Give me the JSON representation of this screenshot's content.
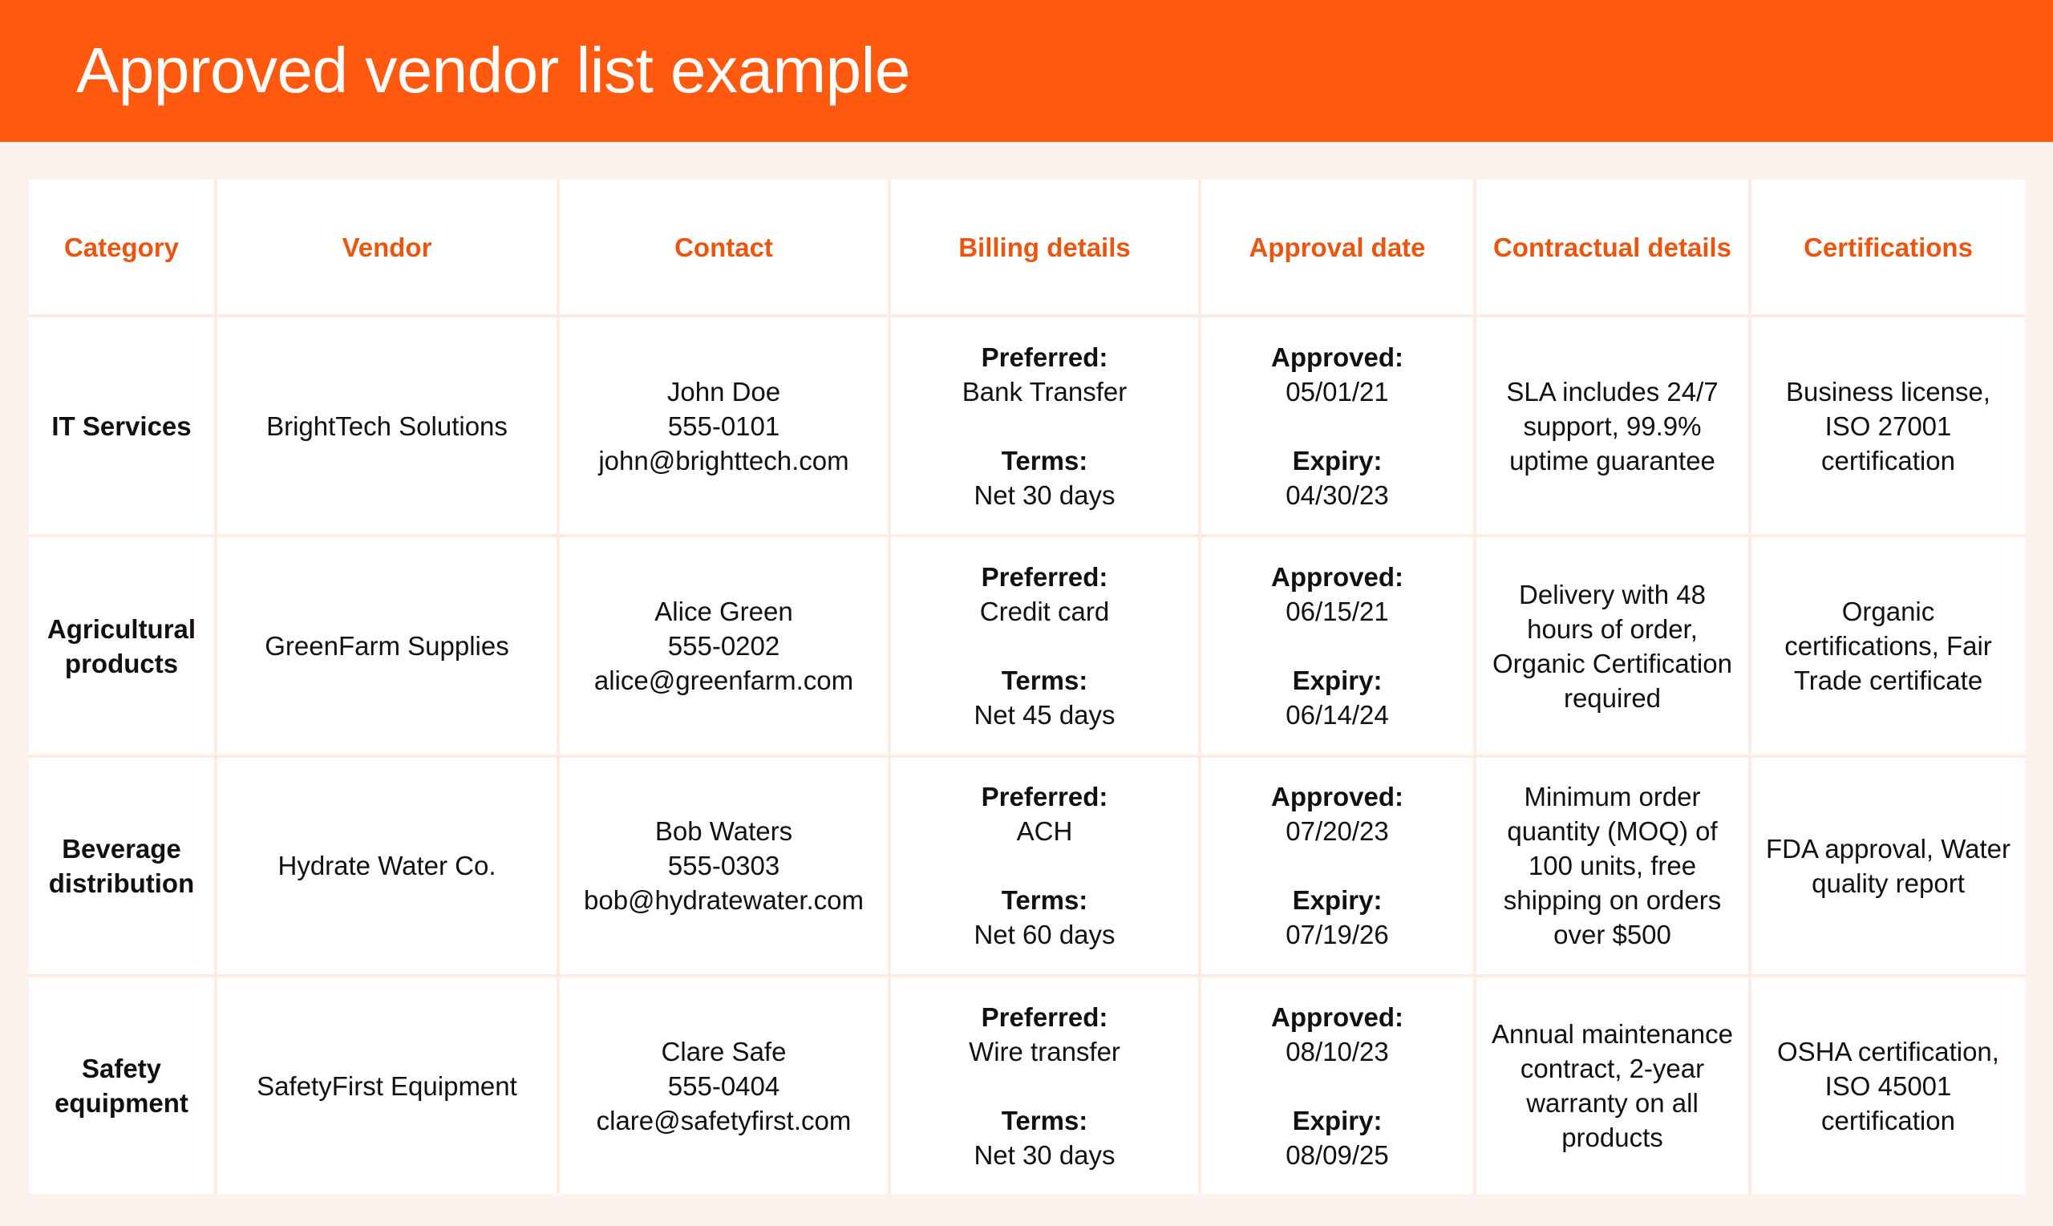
{
  "title": "Approved vendor list example",
  "colors": {
    "banner": "#ff5a0f",
    "header_text": "#e8560f",
    "background": "#fdf3ee"
  },
  "columns": [
    "Category",
    "Vendor",
    "Contact",
    "Billing details",
    "Approval date",
    "Contractual details",
    "Certifications"
  ],
  "rows": [
    {
      "category": "IT Services",
      "vendor": "BrightTech Solutions",
      "contact": {
        "name": "John Doe",
        "phone": "555-0101",
        "email": "john@brighttech.com"
      },
      "billing": {
        "preferred_label": "Preferred:",
        "preferred": "Bank Transfer",
        "terms_label": "Terms:",
        "terms": "Net 30 days"
      },
      "approval": {
        "approved_label": "Approved:",
        "approved": "05/01/21",
        "expiry_label": "Expiry:",
        "expiry": "04/30/23"
      },
      "contract": "SLA includes 24/7 support, 99.9% uptime guarantee",
      "certifications": "Business license, ISO 27001 certification"
    },
    {
      "category": "Agricultural products",
      "vendor": "GreenFarm Supplies",
      "contact": {
        "name": "Alice Green",
        "phone": "555-0202",
        "email": "alice@greenfarm.com"
      },
      "billing": {
        "preferred_label": "Preferred:",
        "preferred": "Credit card",
        "terms_label": "Terms:",
        "terms": "Net 45 days"
      },
      "approval": {
        "approved_label": "Approved:",
        "approved": "06/15/21",
        "expiry_label": "Expiry:",
        "expiry": "06/14/24"
      },
      "contract": "Delivery with 48 hours of order, Organic Certification required",
      "certifications": "Organic certifications, Fair Trade certificate"
    },
    {
      "category": "Beverage distribution",
      "vendor": "Hydrate Water Co.",
      "contact": {
        "name": "Bob Waters",
        "phone": "555-0303",
        "email": "bob@hydratewater.com"
      },
      "billing": {
        "preferred_label": "Preferred:",
        "preferred": "ACH",
        "terms_label": "Terms:",
        "terms": "Net 60 days"
      },
      "approval": {
        "approved_label": "Approved:",
        "approved": "07/20/23",
        "expiry_label": "Expiry:",
        "expiry": "07/19/26"
      },
      "contract": "Minimum order quantity (MOQ) of 100 units, free shipping on orders over $500",
      "certifications": "FDA approval, Water quality report"
    },
    {
      "category": "Safety equipment",
      "vendor": "SafetyFirst Equipment",
      "contact": {
        "name": "Clare Safe",
        "phone": "555-0404",
        "email": "clare@safetyfirst.com"
      },
      "billing": {
        "preferred_label": "Preferred:",
        "preferred": "Wire transfer",
        "terms_label": "Terms:",
        "terms": "Net 30 days"
      },
      "approval": {
        "approved_label": "Approved:",
        "approved": "08/10/23",
        "expiry_label": "Expiry:",
        "expiry": "08/09/25"
      },
      "contract": "Annual maintenance contract, 2-year warranty on all products",
      "certifications": "OSHA certification, ISO 45001 certification"
    }
  ]
}
